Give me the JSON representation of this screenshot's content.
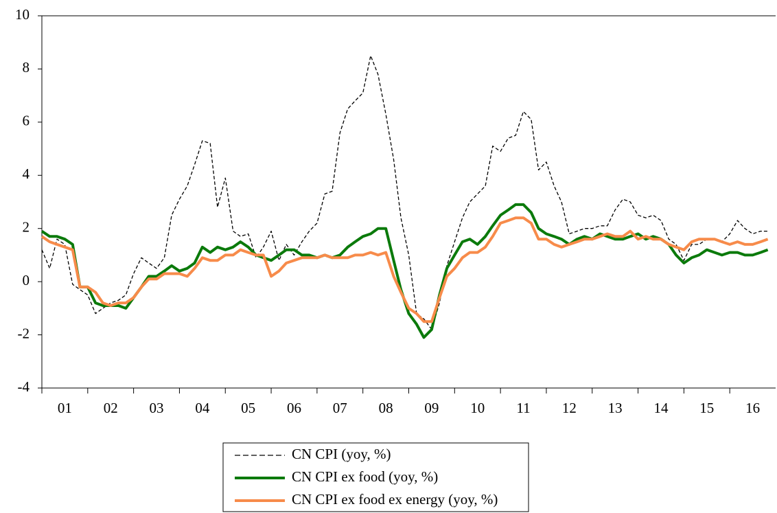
{
  "chart_data": {
    "type": "line",
    "x": [
      2001,
      2001.17,
      2001.33,
      2001.5,
      2001.67,
      2001.83,
      2002,
      2002.17,
      2002.33,
      2002.5,
      2002.67,
      2002.83,
      2003,
      2003.17,
      2003.33,
      2003.5,
      2003.67,
      2003.83,
      2004,
      2004.17,
      2004.33,
      2004.5,
      2004.67,
      2004.83,
      2005,
      2005.17,
      2005.33,
      2005.5,
      2005.67,
      2005.83,
      2006,
      2006.17,
      2006.33,
      2006.5,
      2006.67,
      2006.83,
      2007,
      2007.17,
      2007.33,
      2007.5,
      2007.67,
      2007.83,
      2008,
      2008.17,
      2008.33,
      2008.5,
      2008.67,
      2008.83,
      2009,
      2009.17,
      2009.33,
      2009.5,
      2009.67,
      2009.83,
      2010,
      2010.17,
      2010.33,
      2010.5,
      2010.67,
      2010.83,
      2011,
      2011.17,
      2011.33,
      2011.5,
      2011.67,
      2011.83,
      2012,
      2012.17,
      2012.33,
      2012.5,
      2012.67,
      2012.83,
      2013,
      2013.17,
      2013.33,
      2013.5,
      2013.67,
      2013.83,
      2014,
      2014.17,
      2014.33,
      2014.5,
      2014.67,
      2014.83,
      2015,
      2015.17,
      2015.33,
      2015.5,
      2015.67,
      2015.83,
      2016,
      2016.17,
      2016.33,
      2016.5,
      2016.67,
      2016.83
    ],
    "series": [
      {
        "name": "CN CPI (yoy, %)",
        "color": "#000000",
        "dashed": true,
        "values": [
          1.2,
          0.5,
          1.6,
          1.4,
          -0.1,
          -0.3,
          -0.5,
          -1.2,
          -1.0,
          -0.8,
          -0.7,
          -0.5,
          0.3,
          0.9,
          0.7,
          0.5,
          0.9,
          2.5,
          3.1,
          3.6,
          4.4,
          5.3,
          5.2,
          2.8,
          3.9,
          1.9,
          1.7,
          1.8,
          0.9,
          1.3,
          1.9,
          0.8,
          1.4,
          1.0,
          1.5,
          1.9,
          2.2,
          3.3,
          3.4,
          5.6,
          6.5,
          6.8,
          7.1,
          8.5,
          7.8,
          6.3,
          4.6,
          2.4,
          1.0,
          -1.2,
          -1.4,
          -1.8,
          -0.8,
          0.6,
          1.5,
          2.4,
          3.0,
          3.3,
          3.6,
          5.1,
          4.9,
          5.4,
          5.5,
          6.4,
          6.1,
          4.2,
          4.5,
          3.6,
          3.0,
          1.8,
          1.9,
          2.0,
          2.0,
          2.1,
          2.1,
          2.7,
          3.1,
          3.0,
          2.5,
          2.4,
          2.5,
          2.3,
          1.6,
          1.4,
          0.8,
          1.4,
          1.4,
          1.6,
          1.6,
          1.5,
          1.8,
          2.3,
          2.0,
          1.8,
          1.9,
          1.9
        ]
      },
      {
        "name": "CN CPI ex food (yoy, %)",
        "color": "#0b7a0b",
        "dashed": false,
        "values": [
          1.9,
          1.7,
          1.7,
          1.6,
          1.4,
          -0.2,
          -0.2,
          -0.8,
          -0.9,
          -0.9,
          -0.9,
          -1.0,
          -0.6,
          -0.2,
          0.2,
          0.2,
          0.4,
          0.6,
          0.4,
          0.5,
          0.7,
          1.3,
          1.1,
          1.3,
          1.2,
          1.3,
          1.5,
          1.3,
          1.0,
          0.9,
          0.8,
          1.0,
          1.2,
          1.2,
          1.0,
          1.0,
          0.9,
          1.0,
          0.9,
          1.0,
          1.3,
          1.5,
          1.7,
          1.8,
          2.0,
          2.0,
          0.8,
          -0.3,
          -1.2,
          -1.6,
          -2.1,
          -1.8,
          -0.5,
          0.5,
          1.0,
          1.5,
          1.6,
          1.4,
          1.7,
          2.1,
          2.5,
          2.7,
          2.9,
          2.9,
          2.6,
          2.0,
          1.8,
          1.7,
          1.6,
          1.4,
          1.6,
          1.7,
          1.6,
          1.8,
          1.7,
          1.6,
          1.6,
          1.7,
          1.8,
          1.6,
          1.7,
          1.6,
          1.4,
          1.0,
          0.7,
          0.9,
          1.0,
          1.2,
          1.1,
          1.0,
          1.1,
          1.1,
          1.0,
          1.0,
          1.1,
          1.2
        ]
      },
      {
        "name": "CN CPI ex food ex energy (yoy, %)",
        "color": "#f78b4a",
        "dashed": false,
        "values": [
          1.7,
          1.5,
          1.4,
          1.3,
          1.2,
          -0.2,
          -0.2,
          -0.4,
          -0.8,
          -0.9,
          -0.8,
          -0.8,
          -0.6,
          -0.2,
          0.1,
          0.1,
          0.3,
          0.3,
          0.3,
          0.2,
          0.5,
          0.9,
          0.8,
          0.8,
          1.0,
          1.0,
          1.2,
          1.1,
          1.0,
          1.0,
          0.2,
          0.4,
          0.7,
          0.8,
          0.9,
          0.9,
          0.9,
          1.0,
          0.9,
          0.9,
          0.9,
          1.0,
          1.0,
          1.1,
          1.0,
          1.1,
          0.2,
          -0.4,
          -1.0,
          -1.2,
          -1.5,
          -1.5,
          -0.6,
          0.2,
          0.5,
          0.9,
          1.1,
          1.1,
          1.3,
          1.7,
          2.2,
          2.3,
          2.4,
          2.4,
          2.2,
          1.6,
          1.6,
          1.4,
          1.3,
          1.4,
          1.5,
          1.6,
          1.6,
          1.7,
          1.8,
          1.7,
          1.7,
          1.9,
          1.6,
          1.7,
          1.6,
          1.6,
          1.4,
          1.3,
          1.2,
          1.5,
          1.6,
          1.6,
          1.6,
          1.5,
          1.4,
          1.5,
          1.4,
          1.4,
          1.5,
          1.6
        ]
      }
    ],
    "xlim": [
      2001,
      2017
    ],
    "xticks": [
      {
        "value": 2001.5,
        "label": "01"
      },
      {
        "value": 2002.5,
        "label": "02"
      },
      {
        "value": 2003.5,
        "label": "03"
      },
      {
        "value": 2004.5,
        "label": "04"
      },
      {
        "value": 2005.5,
        "label": "05"
      },
      {
        "value": 2006.5,
        "label": "06"
      },
      {
        "value": 2007.5,
        "label": "07"
      },
      {
        "value": 2008.5,
        "label": "08"
      },
      {
        "value": 2009.5,
        "label": "09"
      },
      {
        "value": 2010.5,
        "label": "10"
      },
      {
        "value": 2011.5,
        "label": "11"
      },
      {
        "value": 2012.5,
        "label": "12"
      },
      {
        "value": 2013.5,
        "label": "13"
      },
      {
        "value": 2014.5,
        "label": "14"
      },
      {
        "value": 2015.5,
        "label": "15"
      },
      {
        "value": 2016.5,
        "label": "16"
      }
    ],
    "ylim": [
      -4,
      10
    ],
    "yticks": [
      -4,
      -2,
      0,
      2,
      4,
      6,
      8,
      10
    ],
    "legend": "bottom"
  }
}
